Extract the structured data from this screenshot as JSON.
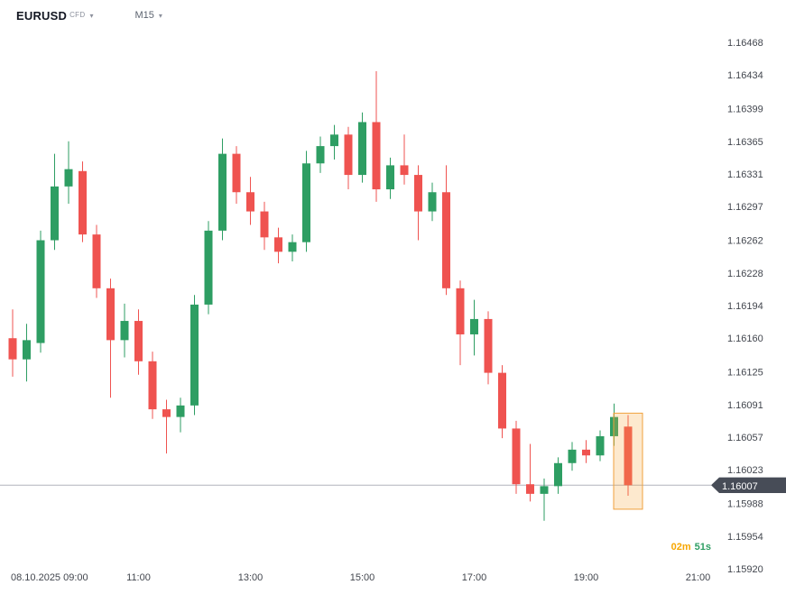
{
  "header": {
    "symbol": "EURUSD",
    "instrument_type": "CFD",
    "timeframe": "M15"
  },
  "current_price": {
    "value": "1.16007"
  },
  "countdown": {
    "minutes": "02m",
    "seconds": "51s"
  },
  "colors": {
    "up": "#2e9e63",
    "down": "#ef5350",
    "price_line": "#b0b3bc",
    "badge_bg": "#474c57",
    "badge_text": "#ffffff",
    "axis_text": "#42464e",
    "countdown_minutes": "#f7a600",
    "countdown_seconds": "#2e9e63",
    "highlight_border": "#f0a13c",
    "highlight_fill": "#f7a63c"
  },
  "chart_data": {
    "type": "candlestick",
    "symbol": "EURUSD",
    "instrument_type": "CFD",
    "interval_minutes": 15,
    "grid": false,
    "y_range": [
      1.1592,
      1.16468
    ],
    "current_price": 1.16007,
    "up_color": "#2e9e63",
    "down_color": "#ef5350",
    "price_axis_ticks": [
      "1.16468",
      "1.16434",
      "1.16399",
      "1.16365",
      "1.16331",
      "1.16297",
      "1.16262",
      "1.16228",
      "1.16194",
      "1.16160",
      "1.16125",
      "1.16091",
      "1.16057",
      "1.16023",
      "1.15988",
      "1.15954",
      "1.15920"
    ],
    "time_ticks": [
      {
        "label": "08.10.2025 09:00",
        "index": 1
      },
      {
        "label": "11:00",
        "index": 9
      },
      {
        "label": "13:00",
        "index": 17
      },
      {
        "label": "15:00",
        "index": 25
      },
      {
        "label": "17:00",
        "index": 33
      },
      {
        "label": "19:00",
        "index": 41
      },
      {
        "label": "21:00",
        "index": 49
      }
    ],
    "candles": [
      {
        "t": "08:45",
        "o": 1.1616,
        "h": 1.1619,
        "l": 1.1612,
        "c": 1.16138
      },
      {
        "t": "09:00",
        "o": 1.16138,
        "h": 1.16175,
        "l": 1.16115,
        "c": 1.16158
      },
      {
        "t": "09:15",
        "o": 1.16155,
        "h": 1.16272,
        "l": 1.16145,
        "c": 1.16262
      },
      {
        "t": "09:30",
        "o": 1.16262,
        "h": 1.16352,
        "l": 1.16252,
        "c": 1.16318
      },
      {
        "t": "09:45",
        "o": 1.16318,
        "h": 1.16365,
        "l": 1.163,
        "c": 1.16336
      },
      {
        "t": "10:00",
        "o": 1.16334,
        "h": 1.16344,
        "l": 1.1626,
        "c": 1.16268
      },
      {
        "t": "10:15",
        "o": 1.16268,
        "h": 1.16278,
        "l": 1.16202,
        "c": 1.16212
      },
      {
        "t": "10:30",
        "o": 1.16212,
        "h": 1.16222,
        "l": 1.16098,
        "c": 1.16158
      },
      {
        "t": "10:45",
        "o": 1.16158,
        "h": 1.16196,
        "l": 1.1614,
        "c": 1.16178
      },
      {
        "t": "11:00",
        "o": 1.16178,
        "h": 1.1619,
        "l": 1.16122,
        "c": 1.16136
      },
      {
        "t": "11:15",
        "o": 1.16136,
        "h": 1.16146,
        "l": 1.16076,
        "c": 1.16086
      },
      {
        "t": "11:30",
        "o": 1.16086,
        "h": 1.16096,
        "l": 1.1604,
        "c": 1.16078
      },
      {
        "t": "11:45",
        "o": 1.16078,
        "h": 1.16098,
        "l": 1.16062,
        "c": 1.1609
      },
      {
        "t": "12:00",
        "o": 1.1609,
        "h": 1.16205,
        "l": 1.1608,
        "c": 1.16195
      },
      {
        "t": "12:15",
        "o": 1.16195,
        "h": 1.16282,
        "l": 1.16185,
        "c": 1.16272
      },
      {
        "t": "12:30",
        "o": 1.16272,
        "h": 1.16368,
        "l": 1.16262,
        "c": 1.16352
      },
      {
        "t": "12:45",
        "o": 1.16352,
        "h": 1.1636,
        "l": 1.163,
        "c": 1.16312
      },
      {
        "t": "13:00",
        "o": 1.16312,
        "h": 1.16328,
        "l": 1.16278,
        "c": 1.16292
      },
      {
        "t": "13:15",
        "o": 1.16292,
        "h": 1.16302,
        "l": 1.16252,
        "c": 1.16265
      },
      {
        "t": "13:30",
        "o": 1.16265,
        "h": 1.16275,
        "l": 1.16238,
        "c": 1.1625
      },
      {
        "t": "13:45",
        "o": 1.1625,
        "h": 1.16268,
        "l": 1.1624,
        "c": 1.1626
      },
      {
        "t": "14:00",
        "o": 1.1626,
        "h": 1.16355,
        "l": 1.1625,
        "c": 1.16342
      },
      {
        "t": "14:15",
        "o": 1.16342,
        "h": 1.1637,
        "l": 1.16332,
        "c": 1.1636
      },
      {
        "t": "14:30",
        "o": 1.1636,
        "h": 1.16382,
        "l": 1.16346,
        "c": 1.16372
      },
      {
        "t": "14:45",
        "o": 1.16372,
        "h": 1.1638,
        "l": 1.16315,
        "c": 1.1633
      },
      {
        "t": "15:00",
        "o": 1.1633,
        "h": 1.16395,
        "l": 1.16322,
        "c": 1.16385
      },
      {
        "t": "15:15",
        "o": 1.16385,
        "h": 1.16438,
        "l": 1.16302,
        "c": 1.16315
      },
      {
        "t": "15:30",
        "o": 1.16315,
        "h": 1.16348,
        "l": 1.16305,
        "c": 1.1634
      },
      {
        "t": "15:45",
        "o": 1.1634,
        "h": 1.16372,
        "l": 1.1632,
        "c": 1.1633
      },
      {
        "t": "16:00",
        "o": 1.1633,
        "h": 1.1634,
        "l": 1.16262,
        "c": 1.16292
      },
      {
        "t": "16:15",
        "o": 1.16292,
        "h": 1.16322,
        "l": 1.16282,
        "c": 1.16312
      },
      {
        "t": "16:30",
        "o": 1.16312,
        "h": 1.1634,
        "l": 1.16205,
        "c": 1.16212
      },
      {
        "t": "16:45",
        "o": 1.16212,
        "h": 1.1622,
        "l": 1.16132,
        "c": 1.16164
      },
      {
        "t": "17:00",
        "o": 1.16164,
        "h": 1.162,
        "l": 1.16142,
        "c": 1.1618
      },
      {
        "t": "17:15",
        "o": 1.1618,
        "h": 1.16188,
        "l": 1.16112,
        "c": 1.16124
      },
      {
        "t": "17:30",
        "o": 1.16124,
        "h": 1.16132,
        "l": 1.16056,
        "c": 1.16066
      },
      {
        "t": "17:45",
        "o": 1.16066,
        "h": 1.16074,
        "l": 1.15998,
        "c": 1.16008
      },
      {
        "t": "18:00",
        "o": 1.16008,
        "h": 1.1605,
        "l": 1.1599,
        "c": 1.15998
      },
      {
        "t": "18:15",
        "o": 1.15998,
        "h": 1.16014,
        "l": 1.1597,
        "c": 1.16006
      },
      {
        "t": "18:30",
        "o": 1.16006,
        "h": 1.16036,
        "l": 1.15998,
        "c": 1.1603
      },
      {
        "t": "18:45",
        "o": 1.1603,
        "h": 1.16052,
        "l": 1.16022,
        "c": 1.16044
      },
      {
        "t": "19:00",
        "o": 1.16044,
        "h": 1.16054,
        "l": 1.1603,
        "c": 1.16038
      },
      {
        "t": "19:15",
        "o": 1.16038,
        "h": 1.16064,
        "l": 1.16032,
        "c": 1.16058
      },
      {
        "t": "19:30",
        "o": 1.16058,
        "h": 1.16092,
        "l": 1.16048,
        "c": 1.16078
      },
      {
        "t": "19:45",
        "o": 1.16068,
        "h": 1.1608,
        "l": 1.15996,
        "c": 1.16007
      }
    ],
    "highlight": {
      "candle_index": 44,
      "from_price": 1.16082,
      "to_price": 1.15982,
      "fill_opacity": 0.25
    }
  }
}
